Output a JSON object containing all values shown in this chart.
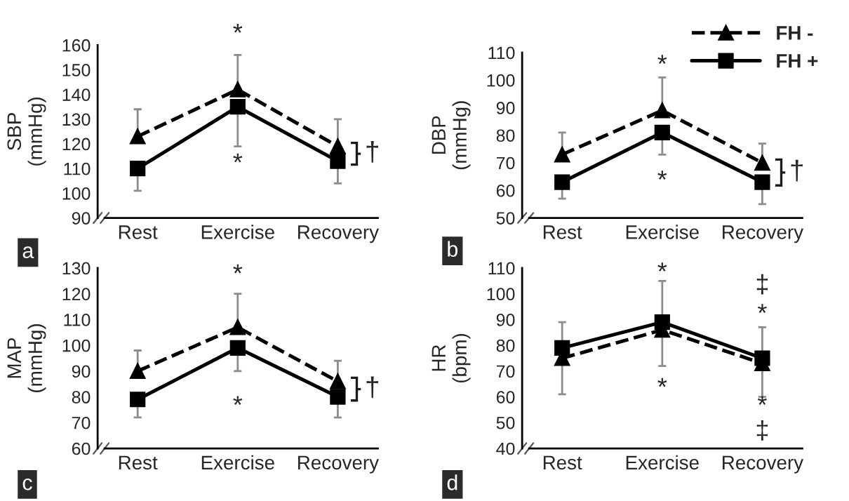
{
  "chart_data": [
    {
      "type": "line",
      "ylabel": "SBP\n(mmHg)",
      "categories": [
        "Rest",
        "Exercise",
        "Recovery"
      ],
      "ylim": [
        90,
        160
      ],
      "yticks": [
        90,
        100,
        110,
        120,
        130,
        140,
        150,
        160
      ],
      "grid": false,
      "legend": false,
      "series": [
        {
          "color": "#000000",
          "marker": "triangle",
          "line_style": "dashed",
          "values": [
            123,
            142,
            119
          ],
          "errors": [
            [
              123,
              134
            ],
            [
              142,
              156
            ],
            [
              119,
              130
            ]
          ]
        },
        {
          "color": "#000000",
          "marker": "square",
          "line_style": "solid",
          "values": [
            110,
            135,
            113
          ],
          "errors": [
            [
              101,
              110
            ],
            [
              119,
              135
            ],
            [
              104,
              113
            ]
          ]
        }
      ],
      "annotations": [
        "*",
        "*",
        "†",
        "a"
      ]
    },
    {
      "type": "line",
      "ylabel": "DBP\n(mmHg)",
      "categories": [
        "Rest",
        "Exercise",
        "Recovery"
      ],
      "ylim": [
        50,
        110
      ],
      "yticks": [
        50,
        60,
        70,
        80,
        90,
        100,
        110
      ],
      "grid": false,
      "legend": "top right",
      "series": [
        {
          "name": "FH -",
          "color": "#000000",
          "marker": "triangle",
          "line_style": "dashed",
          "values": [
            73,
            89,
            70
          ],
          "errors": [
            [
              73,
              81
            ],
            [
              89,
              101
            ],
            [
              70,
              77
            ]
          ]
        },
        {
          "name": "FH +",
          "color": "#000000",
          "marker": "square",
          "line_style": "solid",
          "values": [
            63,
            81,
            63
          ],
          "errors": [
            [
              57,
              63
            ],
            [
              73,
              81
            ],
            [
              55,
              63
            ]
          ]
        }
      ],
      "annotations": [
        "*",
        "*",
        "†",
        "b"
      ]
    },
    {
      "type": "line",
      "ylabel": "MAP\n(mmHg)",
      "categories": [
        "Rest",
        "Exercise",
        "Recovery"
      ],
      "ylim": [
        60,
        130
      ],
      "yticks": [
        60,
        70,
        80,
        90,
        100,
        110,
        120,
        130
      ],
      "grid": false,
      "legend": false,
      "series": [
        {
          "color": "#000000",
          "marker": "triangle",
          "line_style": "dashed",
          "values": [
            90,
            107,
            86
          ],
          "errors": [
            [
              90,
              98
            ],
            [
              107,
              120
            ],
            [
              86,
              94
            ]
          ]
        },
        {
          "color": "#000000",
          "marker": "square",
          "line_style": "solid",
          "values": [
            79,
            99,
            80
          ],
          "errors": [
            [
              72,
              79
            ],
            [
              90,
              99
            ],
            [
              72,
              80
            ]
          ]
        }
      ],
      "annotations": [
        "*",
        "*",
        "†",
        "c"
      ]
    },
    {
      "type": "line",
      "ylabel": "HR\n(bpm)",
      "categories": [
        "Rest",
        "Exercise",
        "Recovery"
      ],
      "ylim": [
        40,
        110
      ],
      "yticks": [
        40,
        50,
        60,
        70,
        80,
        90,
        100,
        110
      ],
      "grid": false,
      "legend": false,
      "series": [
        {
          "color": "#000000",
          "marker": "triangle",
          "line_style": "dashed",
          "values": [
            75,
            86,
            73
          ],
          "errors": [
            [
              61,
              75
            ],
            [
              72,
              86
            ],
            [
              60,
              73
            ]
          ]
        },
        {
          "color": "#000000",
          "marker": "square",
          "line_style": "solid",
          "values": [
            79,
            89,
            75
          ],
          "errors": [
            [
              79,
              89
            ],
            [
              89,
              105
            ],
            [
              75,
              87
            ]
          ]
        }
      ],
      "annotations": [
        "*",
        "*",
        "‡",
        "*",
        "*",
        "‡",
        "d"
      ]
    }
  ]
}
